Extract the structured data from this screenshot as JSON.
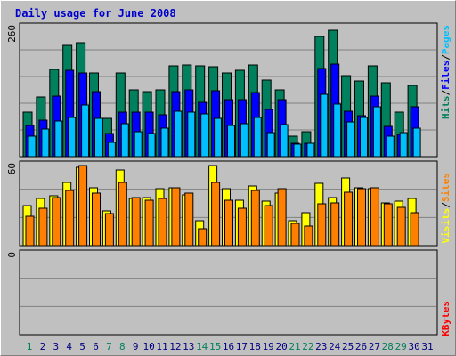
{
  "chart_data": {
    "type": "bar",
    "title": "Daily usage for June 2008",
    "x": [
      1,
      2,
      3,
      4,
      5,
      6,
      7,
      8,
      9,
      10,
      11,
      12,
      13,
      14,
      15,
      16,
      17,
      18,
      19,
      20,
      21,
      22,
      23,
      24,
      25,
      26,
      27,
      28,
      29,
      30,
      31
    ],
    "weekend_days": [
      1,
      7,
      8,
      14,
      15,
      21,
      22,
      28,
      29
    ],
    "panels": [
      {
        "name": "hits-files-pages",
        "ymax": 260,
        "max_label": "260",
        "series": [
          {
            "name": "Hits",
            "color": "#00805c",
            "values": [
              88,
              118,
              172,
              220,
              225,
              165,
              75,
              165,
              132,
              128,
              131,
              180,
              181,
              180,
              177,
              166,
              171,
              181,
              151,
              132,
              40,
              50,
              238,
              250,
              160,
              150,
              180,
              145,
              87,
              140,
              0
            ]
          },
          {
            "name": "Files",
            "color": "#0000ff",
            "values": [
              61,
              72,
              120,
              170,
              166,
              129,
              46,
              88,
              87,
              87,
              83,
              128,
              131,
              108,
              130,
              112,
              113,
              127,
              93,
              113,
              27,
              27,
              174,
              182,
              90,
              80,
              120,
              60,
              44,
              98,
              0
            ]
          },
          {
            "name": "Pages",
            "color": "#00bfff",
            "values": [
              41,
              55,
              70,
              78,
              102,
              75,
              28,
              65,
              49,
              45,
              57,
              90,
              88,
              84,
              76,
              61,
              65,
              78,
              47,
              63,
              24,
              26,
              123,
              104,
              68,
              78,
              98,
              40,
              47,
              56,
              0
            ]
          }
        ]
      },
      {
        "name": "visits-sites",
        "ymax": 60,
        "max_label": "60",
        "series": [
          {
            "name": "Visits",
            "color": "#ffff00",
            "values": [
              29,
              34,
              36,
              46,
              57,
              42,
              25,
              55,
              34,
              35,
              41,
              42,
              37,
              18,
              58,
              41,
              33,
              43,
              32,
              38,
              18,
              24,
              45,
              35,
              49,
              42,
              41,
              31,
              32,
              34,
              0
            ]
          },
          {
            "name": "Sites",
            "color": "#ff8000",
            "values": [
              21,
              27,
              35,
              40,
              58,
              38,
              23,
              46,
              35,
              33,
              34,
              42,
              38,
              12,
              46,
              33,
              27,
              40,
              29,
              41,
              16,
              14,
              30,
              31,
              39,
              41,
              42,
              30,
              28,
              24,
              0
            ]
          }
        ]
      },
      {
        "name": "kbytes",
        "ymax": 1,
        "max_label": "0",
        "series": [
          {
            "name": "KBytes",
            "color": "#ff0000",
            "values": [
              0,
              0,
              0,
              0,
              0,
              0,
              0,
              0,
              0,
              0,
              0,
              0,
              0,
              0,
              0,
              0,
              0,
              0,
              0,
              0,
              0,
              0,
              0,
              0,
              0,
              0,
              0,
              0,
              0,
              0,
              0
            ]
          }
        ]
      }
    ],
    "right_labels": [
      {
        "parts": [
          {
            "text": "Pages",
            "color": "#00bfff"
          },
          {
            "text": "/",
            "color": "#000000"
          },
          {
            "text": "Files",
            "color": "#0000ff"
          },
          {
            "text": "/",
            "color": "#000000"
          },
          {
            "text": "Hits",
            "color": "#00805c"
          }
        ]
      },
      {
        "parts": [
          {
            "text": "Sites",
            "color": "#ff8000"
          },
          {
            "text": "/",
            "color": "#000000"
          },
          {
            "text": "Visits",
            "color": "#ffff00"
          }
        ]
      },
      {
        "parts": [
          {
            "text": "KBytes",
            "color": "#ff0000"
          }
        ]
      }
    ],
    "colors": {
      "weekday_label": "#000080",
      "weekend_label": "#00805c",
      "plot_bg": "#c0c0c0",
      "grid": "#808080"
    }
  }
}
